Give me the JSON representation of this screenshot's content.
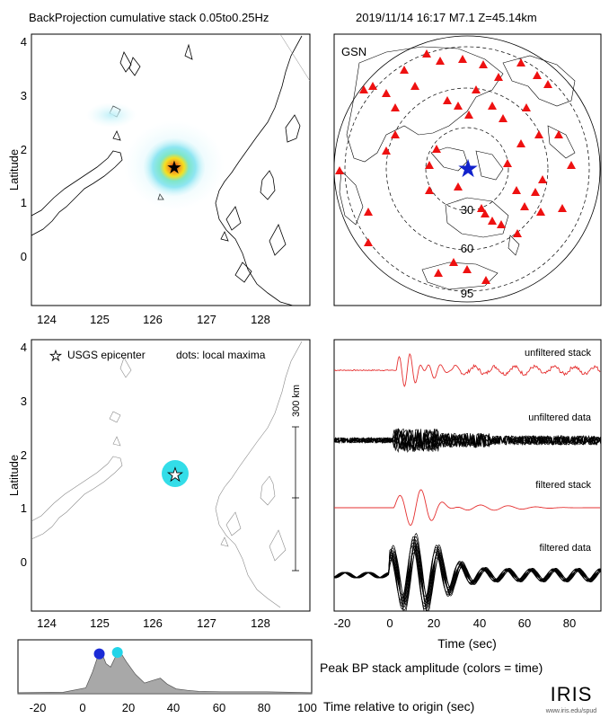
{
  "header": {
    "title": "BackProjection cumulative stack 0.05to0.25Hz",
    "event": "2019/11/14 16:17  M7.1  Z=45.14km"
  },
  "colors": {
    "red_series": "#e53030",
    "station": "#ee1111",
    "epicenter_star": "#1122cc",
    "hotspot_cyan": "#33dde8",
    "hotspot_yellow": "#f6e020",
    "hotspot_red": "#e03a10",
    "amplitude_fill": "#a8a8a8",
    "dot_blue": "#1b2bd6",
    "dot_cyan": "#22d4e8"
  },
  "map_top": {
    "ylabel": "Latitude",
    "xticks": [
      "124",
      "125",
      "126",
      "127",
      "128"
    ],
    "yticks": [
      "4",
      "3",
      "2",
      "1",
      "0"
    ]
  },
  "map_bottom": {
    "ylabel": "Latitude",
    "xticks": [
      "124",
      "125",
      "126",
      "127",
      "128"
    ],
    "yticks": [
      "4",
      "3",
      "2",
      "1",
      "0"
    ],
    "legend_star": "USGS epicenter",
    "legend_dots": "dots: local maxima",
    "scale_label": "300 km"
  },
  "globe": {
    "network": "GSN",
    "rings": [
      "30",
      "60",
      "95"
    ]
  },
  "waveforms": {
    "labels": [
      "unfiltered stack",
      "unfiltered data",
      "filtered stack",
      "filtered data"
    ],
    "xlabel": "Time (sec)",
    "xticks": [
      "-20",
      "0",
      "20",
      "40",
      "60",
      "80"
    ]
  },
  "amplitude": {
    "label": "Peak BP stack amplitude (colors = time)",
    "xlabel": "Time relative to origin (sec)",
    "xticks": [
      "-20",
      "0",
      "20",
      "40",
      "60",
      "80",
      "100"
    ]
  },
  "logo": {
    "name": "IRIS",
    "url": "www.iris.edu/spud"
  },
  "chart_data": [
    {
      "type": "heatmap",
      "title": "BackProjection cumulative stack 0.05to0.25Hz",
      "ylabel": "Latitude",
      "xlim": [
        123.8,
        128.8
      ],
      "ylim": [
        -0.9,
        4.1
      ],
      "epicenter": {
        "lon": 126.4,
        "lat": 1.6
      },
      "peak": {
        "lon": 126.4,
        "lat": 1.6
      }
    },
    {
      "type": "scatter",
      "title": "GSN",
      "rings_deg": [
        30,
        60,
        95
      ]
    },
    {
      "type": "line",
      "xlabel": "Time (sec)",
      "xlim": [
        -25,
        95
      ],
      "series": [
        {
          "name": "unfiltered stack"
        },
        {
          "name": "unfiltered data"
        },
        {
          "name": "filtered stack"
        },
        {
          "name": "filtered data"
        }
      ]
    },
    {
      "type": "area",
      "title": "Peak BP stack amplitude (colors = time)",
      "xlabel": "Time relative to origin (sec)",
      "xlim": [
        -30,
        100
      ],
      "x": [
        -30,
        -10,
        0,
        3,
        5,
        7,
        9,
        11,
        13,
        15,
        18,
        22,
        26,
        30,
        33,
        36,
        40,
        45,
        50,
        60,
        70,
        80,
        90,
        100
      ],
      "values": [
        0.02,
        0.03,
        0.12,
        0.45,
        0.72,
        0.85,
        0.62,
        0.55,
        0.75,
        0.88,
        0.66,
        0.4,
        0.22,
        0.28,
        0.32,
        0.2,
        0.1,
        0.07,
        0.05,
        0.04,
        0.04,
        0.04,
        0.03,
        0.02
      ],
      "ylim": [
        0,
        1
      ],
      "local_maxima": [
        {
          "x": 6,
          "color": "blue"
        },
        {
          "x": 14,
          "color": "cyan"
        }
      ]
    }
  ]
}
